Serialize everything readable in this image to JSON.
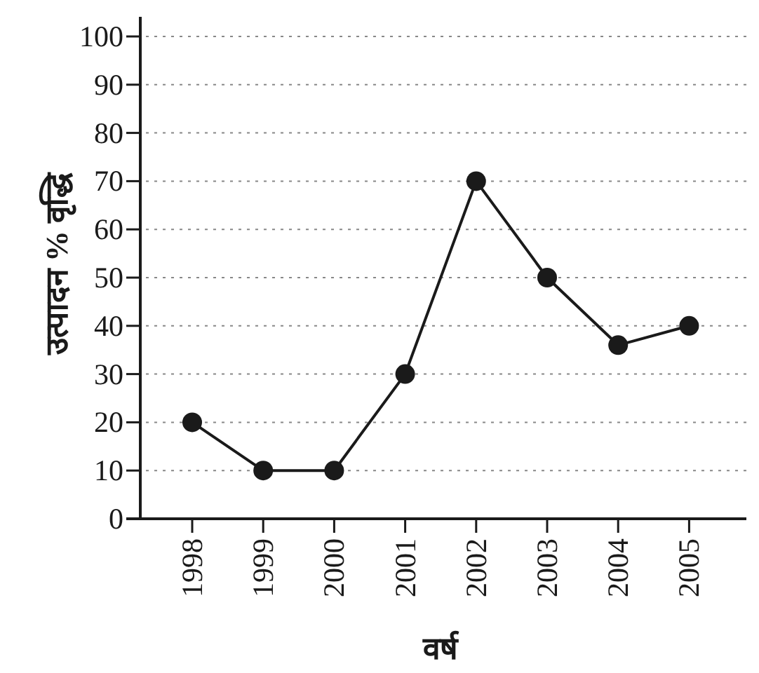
{
  "chart_data": {
    "type": "line",
    "xlabel": "वर्ष",
    "ylabel": "उत्पादन % वृद्धि",
    "categories": [
      "1998",
      "1999",
      "2000",
      "2001",
      "2002",
      "2003",
      "2004",
      "2005"
    ],
    "series": [
      {
        "color": "#1a1a1a",
        "values": [
          20,
          10,
          10,
          30,
          70,
          50,
          36,
          40
        ]
      }
    ],
    "ylim": [
      0,
      100
    ],
    "yticks": [
      0,
      10,
      20,
      30,
      40,
      50,
      60,
      70,
      80,
      90,
      100
    ],
    "grid": "y",
    "marker": "circle",
    "line_style": "solid"
  }
}
